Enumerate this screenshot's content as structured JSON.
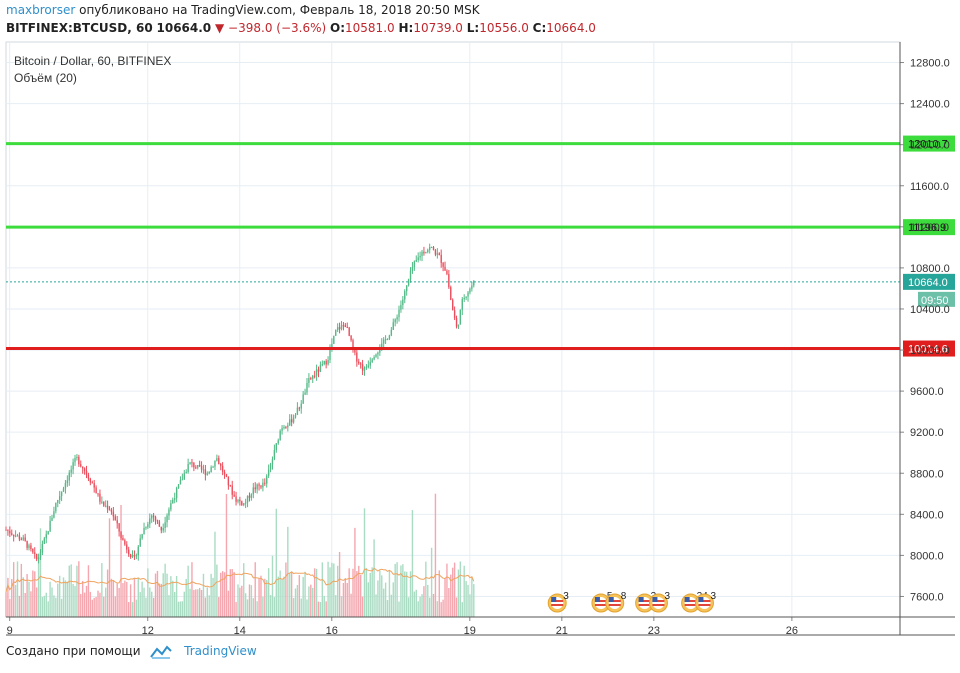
{
  "header": {
    "author": "maxbrorser",
    "published": "опубликовано на TradingView.com, Февраль 18, 2018 20:50 MSK",
    "symbol": "BITFINEX:BTCUSD, 60",
    "last": "10664.0",
    "change": "−398.0 (−3.6%)",
    "o_label": "O:",
    "o": "10581.0",
    "h_label": "H:",
    "h": "10739.0",
    "l_label": "L:",
    "l": "10556.0",
    "c_label": "C:",
    "c": "10664.0"
  },
  "legend": {
    "title": "Bitcoin / Dollar, 60, BITFINEX",
    "indicator": "Объём (20)"
  },
  "footer": {
    "created_with": "Создано при помощи",
    "brand": "TradingView"
  },
  "colors": {
    "up": "#53b987",
    "down": "#eb4d5c",
    "up_volume": "#a9dcc3",
    "down_volume": "#f5a6ae",
    "volume_ma": "#f0a35e",
    "resistance": "#3ddc3d",
    "support": "#e01e1e",
    "last_price": "#26a69a",
    "grid": "#e6eef4"
  },
  "chart_data": {
    "type": "candlestick",
    "price_axis": {
      "min": 7400,
      "max": 13000,
      "ticks": [
        "12800.0",
        "12400.0",
        "12000.0",
        "11600.0",
        "11200.0",
        "10800.0",
        "10400.0",
        "10000.0",
        "9600.0",
        "9200.0",
        "8800.0",
        "8400.0",
        "8000.0",
        "7600.0"
      ]
    },
    "time_axis": {
      "start_day": 8.92,
      "end_day": 28.35,
      "ticks": [
        {
          "day": 9,
          "label": "9"
        },
        {
          "day": 12,
          "label": "12"
        },
        {
          "day": 14,
          "label": "14"
        },
        {
          "day": 16,
          "label": "16"
        },
        {
          "day": 19,
          "label": "19"
        },
        {
          "day": 21,
          "label": "21"
        },
        {
          "day": 23,
          "label": "23"
        },
        {
          "day": 26,
          "label": "26"
        }
      ]
    },
    "horizontal_lines": [
      {
        "name": "resistance-upper",
        "price": 12010.7,
        "label": "12010.7",
        "color": "#3ddc3d"
      },
      {
        "name": "resistance-lower",
        "price": 11196.9,
        "label": "11196.9",
        "color": "#3ddc3d"
      },
      {
        "name": "support",
        "price": 10014.6,
        "label": "10014.6",
        "color": "#e01e1e"
      }
    ],
    "last_price": {
      "price": 10664.0,
      "label": "10664.0",
      "countdown": "09:50"
    },
    "price_path": [
      [
        8.92,
        8250
      ],
      [
        9.3,
        8150
      ],
      [
        9.6,
        7950
      ],
      [
        9.8,
        8200
      ],
      [
        10.0,
        8500
      ],
      [
        10.2,
        8700
      ],
      [
        10.45,
        8950
      ],
      [
        10.6,
        8850
      ],
      [
        10.8,
        8700
      ],
      [
        11.0,
        8500
      ],
      [
        11.2,
        8450
      ],
      [
        11.45,
        8150
      ],
      [
        11.7,
        7950
      ],
      [
        11.9,
        8250
      ],
      [
        12.1,
        8400
      ],
      [
        12.3,
        8250
      ],
      [
        12.5,
        8500
      ],
      [
        12.7,
        8700
      ],
      [
        12.9,
        8900
      ],
      [
        13.1,
        8850
      ],
      [
        13.3,
        8800
      ],
      [
        13.5,
        8950
      ],
      [
        13.7,
        8750
      ],
      [
        13.9,
        8550
      ],
      [
        14.1,
        8500
      ],
      [
        14.3,
        8650
      ],
      [
        14.55,
        8700
      ],
      [
        14.75,
        9000
      ],
      [
        14.9,
        9250
      ],
      [
        15.1,
        9300
      ],
      [
        15.3,
        9450
      ],
      [
        15.5,
        9700
      ],
      [
        15.7,
        9800
      ],
      [
        15.9,
        9900
      ],
      [
        16.1,
        10200
      ],
      [
        16.3,
        10250
      ],
      [
        16.5,
        9950
      ],
      [
        16.7,
        9800
      ],
      [
        16.9,
        9950
      ],
      [
        17.1,
        10050
      ],
      [
        17.3,
        10200
      ],
      [
        17.55,
        10500
      ],
      [
        17.75,
        10800
      ],
      [
        17.95,
        10950
      ],
      [
        18.15,
        11000
      ],
      [
        18.35,
        10900
      ],
      [
        18.5,
        10750
      ],
      [
        18.6,
        10450
      ],
      [
        18.72,
        10200
      ],
      [
        18.85,
        10500
      ],
      [
        19.0,
        10600
      ],
      [
        19.1,
        10664
      ]
    ],
    "volume_axis": {
      "max": 2200
    },
    "events": [
      {
        "day": 20.9,
        "count": "3"
      },
      {
        "day": 21.85,
        "count": "5"
      },
      {
        "day": 22.15,
        "count": "8"
      },
      {
        "day": 22.8,
        "count": "3"
      },
      {
        "day": 23.1,
        "count": "3"
      },
      {
        "day": 23.8,
        "count": "24"
      },
      {
        "day": 24.1,
        "count": "3"
      }
    ]
  }
}
